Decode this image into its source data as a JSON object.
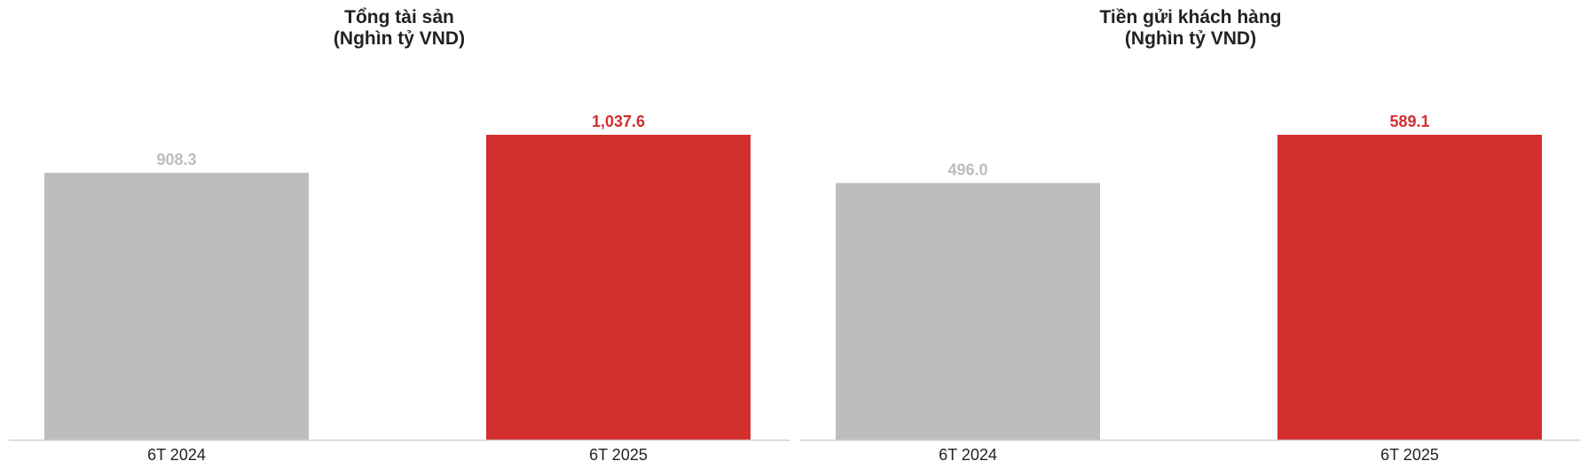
{
  "colors": {
    "previous": "#bdbdbd",
    "current": "#d32f2f",
    "axis": "#d0d0d0",
    "text": "#222222"
  },
  "chart_data": [
    {
      "type": "bar",
      "title": "Tổng tài sản\n(Nghìn tỷ VND)",
      "categories": [
        "6T 2024",
        "6T 2025"
      ],
      "values": [
        908.3,
        1037.6
      ],
      "value_labels": [
        "908.3",
        "1,037.6"
      ],
      "ylim": [
        0,
        1037.6
      ],
      "grid": false
    },
    {
      "type": "bar",
      "title": "Tiền gửi khách hàng\n(Nghìn tỷ VND)",
      "categories": [
        "6T 2024",
        "6T 2025"
      ],
      "values": [
        496.0,
        589.1
      ],
      "value_labels": [
        "496.0",
        "589.1"
      ],
      "ylim": [
        0,
        589.1
      ],
      "grid": false
    }
  ]
}
